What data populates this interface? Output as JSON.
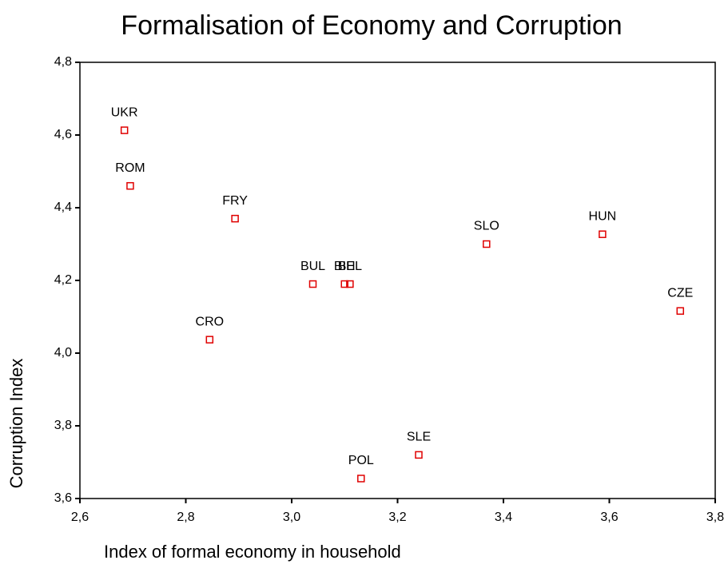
{
  "chart_data": {
    "type": "scatter",
    "title": "Formalisation of Economy and Corruption",
    "xlabel": "Index of formal economy in household",
    "ylabel": "Corruption Index",
    "labels": [
      "UKR",
      "ROM",
      "FRY",
      "CRO",
      "BUL",
      "BIH",
      "BEL",
      "SLO",
      "HUN",
      "CZE",
      "SLE",
      "POL"
    ],
    "x": [
      2.684,
      2.695,
      2.893,
      2.845,
      3.04,
      3.1,
      3.11,
      3.368,
      3.587,
      3.734,
      3.24,
      3.131
    ],
    "values": [
      4.613,
      4.46,
      4.37,
      4.037,
      4.19,
      4.19,
      4.19,
      4.3,
      4.327,
      4.116,
      3.72,
      3.655
    ],
    "color": "#e00000",
    "xlim": [
      2.6,
      3.8
    ],
    "ylim": [
      3.6,
      4.8
    ],
    "xticks": [
      {
        "value": 2.6,
        "label": "2,6"
      },
      {
        "value": 2.8,
        "label": "2,8"
      },
      {
        "value": 3.0,
        "label": "3,0"
      },
      {
        "value": 3.2,
        "label": "3,2"
      },
      {
        "value": 3.4,
        "label": "3,4"
      },
      {
        "value": 3.6,
        "label": "3,6"
      },
      {
        "value": 3.8,
        "label": "3,8"
      }
    ],
    "yticks": [
      {
        "value": 3.6,
        "label": "3,6"
      },
      {
        "value": 3.8,
        "label": "3,8"
      },
      {
        "value": 4.0,
        "label": "4,0"
      },
      {
        "value": 4.2,
        "label": "4,2"
      },
      {
        "value": 4.4,
        "label": "4,4"
      },
      {
        "value": 4.6,
        "label": "4,6"
      },
      {
        "value": 4.8,
        "label": "4,8"
      }
    ]
  }
}
